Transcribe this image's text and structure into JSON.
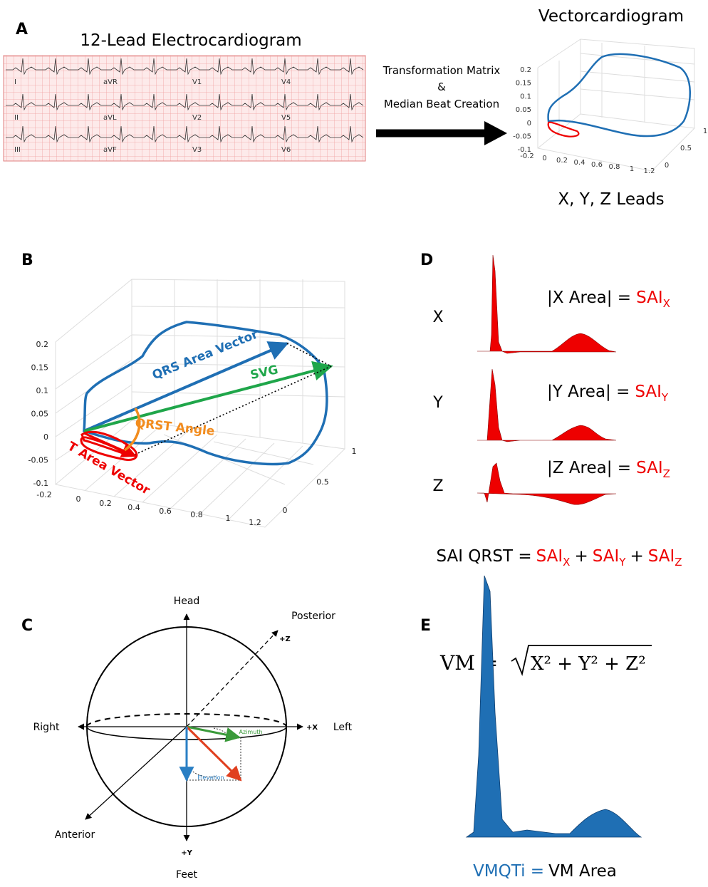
{
  "panels": {
    "a": {
      "label": "A",
      "ecg_title": "12-Lead Electrocardiogram",
      "leads": [
        [
          "I",
          "aVR",
          "V1",
          "V4"
        ],
        [
          "II",
          "aVL",
          "V2",
          "V5"
        ],
        [
          "III",
          "aVF",
          "V3",
          "V6"
        ]
      ],
      "arrow_text": [
        "Transformation Matrix",
        "&",
        "Median Beat Creation"
      ],
      "vcg_title": "Vectorcardiogram",
      "vcg_caption": "X, Y, Z Leads",
      "vcg_yticks": [
        "0.2",
        "0.15",
        "0.1",
        "0.05",
        "0",
        "-0.05",
        "-0.1"
      ],
      "vcg_xticks": [
        "-0.2",
        "0",
        "0.2",
        "0.4",
        "0.6",
        "0.8",
        "1",
        "1.2"
      ],
      "vcg_zticks": [
        "1",
        "0.5",
        "0"
      ]
    },
    "b": {
      "label": "B",
      "yticks": [
        "0.2",
        "0.15",
        "0.1",
        "0.05",
        "0",
        "-0.05",
        "-0.1"
      ],
      "xticks": [
        "-0.2",
        "0",
        "0.2",
        "0.4",
        "0.6",
        "0.8",
        "1",
        "1.2"
      ],
      "zticks": [
        "1",
        "0.5",
        "0"
      ],
      "qrs": "QRS Area Vector",
      "svg": "SVG",
      "angle": "QRST Angle",
      "t": "T Area Vector"
    },
    "c": {
      "label": "C",
      "head": "Head",
      "posterior": "Posterior",
      "pz": "+Z",
      "right": "Right",
      "px": "+X",
      "left": "Left",
      "azimuth": "Azimuth",
      "elevation": "Elevation",
      "anterior": "Anterior",
      "py": "+Y",
      "feet": "Feet"
    },
    "d": {
      "label": "D",
      "rows": [
        {
          "lead": "X",
          "area": "|X Area| =",
          "sai": "SAI",
          "sub": "X"
        },
        {
          "lead": "Y",
          "area": "|Y Area| =",
          "sai": "SAI",
          "sub": "Y"
        },
        {
          "lead": "Z",
          "area": "|Z Area| =",
          "sai": "SAI",
          "sub": "Z"
        }
      ],
      "total": {
        "lhs": "SAI QRST =",
        "plus": "+",
        "terms": [
          {
            "sai": "SAI",
            "sub": "X"
          },
          {
            "sai": "SAI",
            "sub": "Y"
          },
          {
            "sai": "SAI",
            "sub": "Z"
          }
        ]
      }
    },
    "e": {
      "label": "E",
      "lhs": "VM =",
      "radicand": "X² + Y² + Z²",
      "result_lhs": "VMQTi =",
      "result_rhs": "VM Area"
    }
  }
}
